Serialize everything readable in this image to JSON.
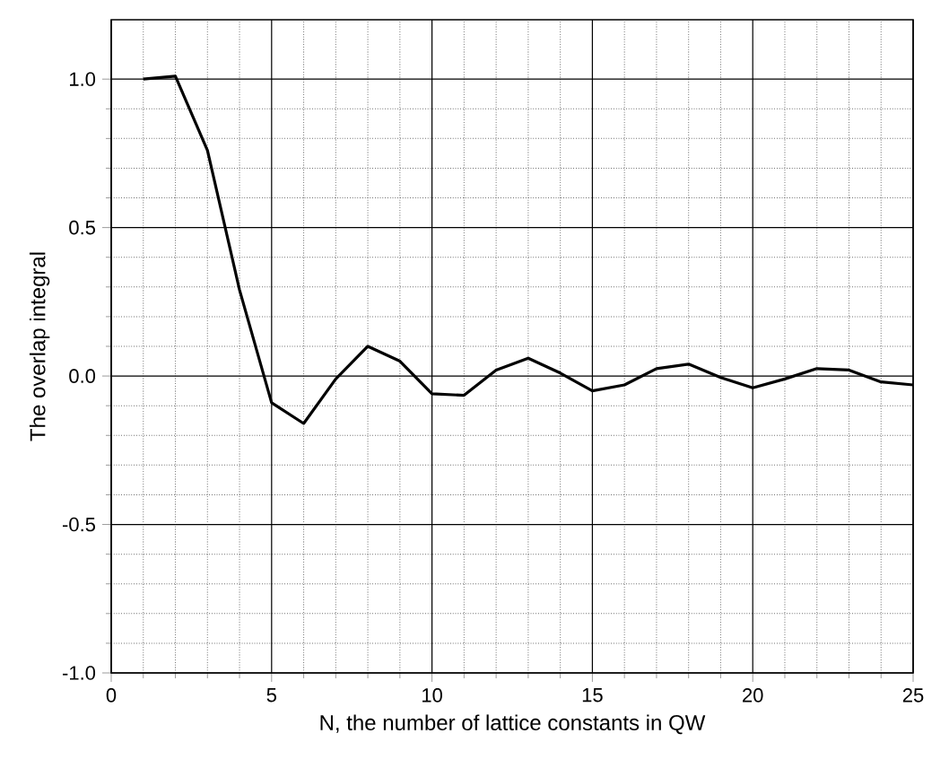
{
  "chart_data": {
    "type": "line",
    "xlabel": "N, the number of lattice constants in QW",
    "ylabel": "The overlap integral",
    "x": [
      1,
      2,
      3,
      4,
      5,
      6,
      7,
      8,
      9,
      10,
      11,
      12,
      13,
      14,
      15,
      16,
      17,
      18,
      19,
      20,
      21,
      22,
      23,
      24,
      25
    ],
    "series": [
      {
        "color": "#000000",
        "values": [
          1.0,
          1.01,
          0.76,
          0.29,
          -0.09,
          -0.16,
          -0.01,
          0.1,
          0.05,
          -0.06,
          -0.065,
          0.02,
          0.06,
          0.01,
          -0.05,
          -0.03,
          0.025,
          0.04,
          -0.005,
          -0.04,
          -0.01,
          0.025,
          0.02,
          -0.02,
          -0.03
        ]
      }
    ],
    "xlim": [
      0,
      25
    ],
    "ylim": [
      -1.0,
      1.2
    ],
    "xticks": [
      0,
      5,
      10,
      15,
      20,
      25
    ],
    "yticks": [
      {
        "value": -1.0,
        "label": "-1.0"
      },
      {
        "value": -0.5,
        "label": "-0.5"
      },
      {
        "value": 0.0,
        "label": "0.0"
      },
      {
        "value": 0.5,
        "label": "0.5"
      },
      {
        "value": 1.0,
        "label": "1.0"
      }
    ],
    "grid": true,
    "marker": "none",
    "line_style": "solid"
  }
}
